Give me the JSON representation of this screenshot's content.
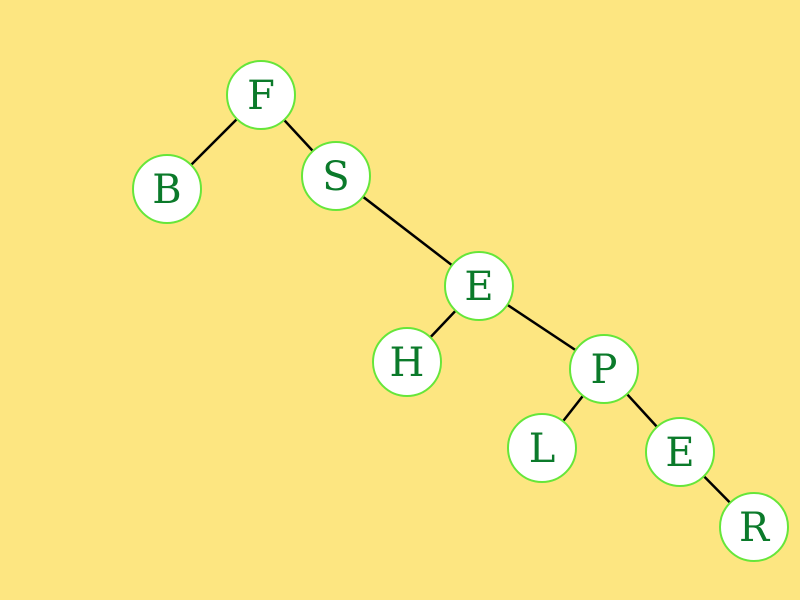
{
  "diagram": {
    "type": "tree",
    "colors": {
      "background": "#fde681",
      "node_fill": "#ffffff",
      "node_stroke": "#66e63a",
      "label": "#0b7a2a",
      "edge": "#000000"
    },
    "nodes": [
      {
        "id": "n1",
        "label": "F"
      },
      {
        "id": "n2",
        "label": "B"
      },
      {
        "id": "n3",
        "label": "S"
      },
      {
        "id": "n4",
        "label": "E"
      },
      {
        "id": "n5",
        "label": "H"
      },
      {
        "id": "n6",
        "label": "P"
      },
      {
        "id": "n7",
        "label": "L"
      },
      {
        "id": "n8",
        "label": "E"
      },
      {
        "id": "n9",
        "label": "R"
      }
    ],
    "edges": [
      {
        "from": "n1",
        "to": "n2"
      },
      {
        "from": "n1",
        "to": "n3"
      },
      {
        "from": "n3",
        "to": "n4"
      },
      {
        "from": "n4",
        "to": "n5"
      },
      {
        "from": "n4",
        "to": "n6"
      },
      {
        "from": "n6",
        "to": "n7"
      },
      {
        "from": "n6",
        "to": "n8"
      },
      {
        "from": "n8",
        "to": "n9"
      }
    ]
  }
}
